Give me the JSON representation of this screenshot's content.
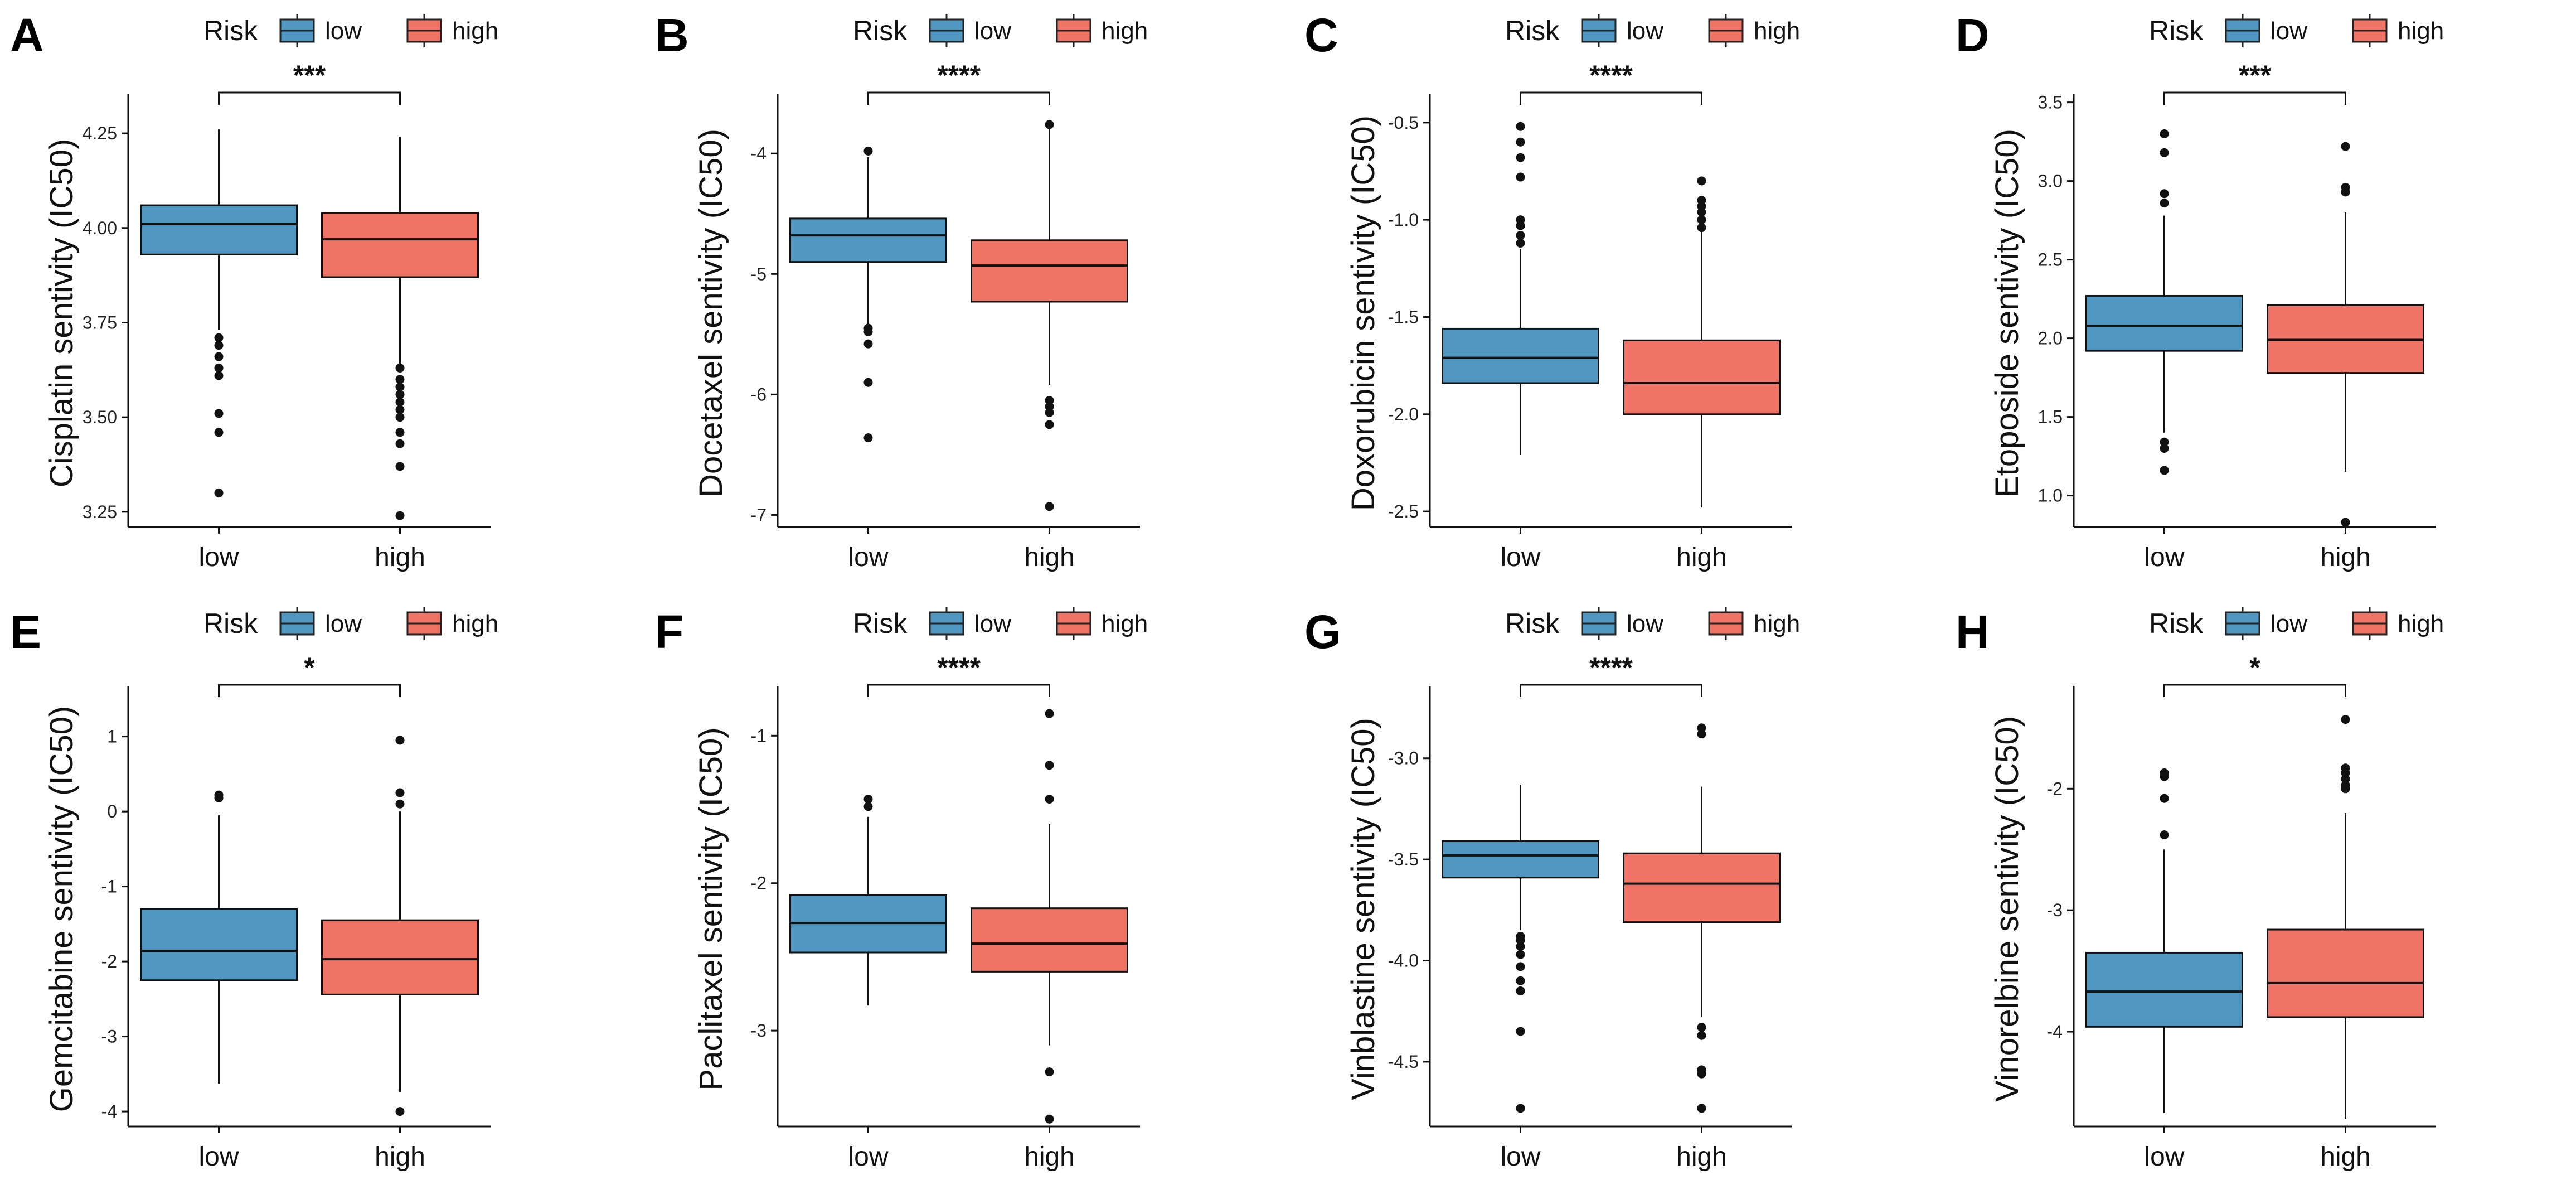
{
  "legend": {
    "title": "Risk",
    "items": [
      {
        "label": "low",
        "color": "#4f96c0"
      },
      {
        "label": "high",
        "color": "#ef7466"
      }
    ]
  },
  "chart_data": [
    {
      "panel": "A",
      "type": "box",
      "ylabel": "Cisplatin sentivity (IC50)",
      "categories": [
        "low",
        "high"
      ],
      "ylim": [
        3.21,
        4.34
      ],
      "yticks": [
        3.25,
        3.5,
        3.75,
        4.0,
        4.25
      ],
      "ytick_labels": [
        "3.25",
        "3.50",
        "3.75",
        "4.00",
        "4.25"
      ],
      "significance": "***",
      "boxes": [
        {
          "group": "low",
          "whisker_low": 3.73,
          "q1": 3.93,
          "median": 4.01,
          "q3": 4.06,
          "whisker_high": 4.26,
          "outliers": [
            3.3,
            3.46,
            3.51,
            3.61,
            3.63,
            3.66,
            3.69,
            3.71
          ]
        },
        {
          "group": "high",
          "whisker_low": 3.64,
          "q1": 3.87,
          "median": 3.97,
          "q3": 4.04,
          "whisker_high": 4.24,
          "outliers": [
            3.24,
            3.37,
            3.43,
            3.46,
            3.5,
            3.52,
            3.54,
            3.56,
            3.58,
            3.6,
            3.63
          ]
        }
      ]
    },
    {
      "panel": "B",
      "type": "box",
      "ylabel": "Docetaxel sentivity (IC50)",
      "categories": [
        "low",
        "high"
      ],
      "ylim": [
        -7.1,
        -3.55
      ],
      "yticks": [
        -7,
        -6,
        -5,
        -4
      ],
      "ytick_labels": [
        "-7",
        "-6",
        "-5",
        "-4"
      ],
      "significance": "****",
      "boxes": [
        {
          "group": "low",
          "whisker_low": -5.42,
          "q1": -4.9,
          "median": -4.68,
          "q3": -4.54,
          "whisker_high": -4.03,
          "outliers": [
            -3.98,
            -5.45,
            -5.48,
            -5.58,
            -5.9,
            -6.36
          ]
        },
        {
          "group": "high",
          "whisker_low": -5.92,
          "q1": -5.23,
          "median": -4.93,
          "q3": -4.72,
          "whisker_high": -3.8,
          "outliers": [
            -3.76,
            -6.05,
            -6.1,
            -6.15,
            -6.25,
            -6.93
          ]
        }
      ]
    },
    {
      "panel": "C",
      "type": "box",
      "ylabel": "Doxorubicin sentivity (IC50)",
      "categories": [
        "low",
        "high"
      ],
      "ylim": [
        -2.58,
        -0.38
      ],
      "yticks": [
        -2.5,
        -2.0,
        -1.5,
        -1.0,
        -0.5
      ],
      "ytick_labels": [
        "-2.5",
        "-2.0",
        "-1.5",
        "-1.0",
        "-0.5"
      ],
      "significance": "****",
      "boxes": [
        {
          "group": "low",
          "whisker_low": -2.21,
          "q1": -1.84,
          "median": -1.71,
          "q3": -1.56,
          "whisker_high": -1.15,
          "outliers": [
            -0.52,
            -0.6,
            -0.68,
            -0.78,
            -1.0,
            -1.03,
            -1.08,
            -1.12
          ]
        },
        {
          "group": "high",
          "whisker_low": -2.48,
          "q1": -2.0,
          "median": -1.84,
          "q3": -1.62,
          "whisker_high": -1.06,
          "outliers": [
            -0.8,
            -0.9,
            -0.93,
            -0.96,
            -1.0,
            -1.04
          ]
        }
      ]
    },
    {
      "panel": "D",
      "type": "box",
      "ylabel": "Etoposide sentivity (IC50)",
      "categories": [
        "low",
        "high"
      ],
      "ylim": [
        0.8,
        3.52
      ],
      "yticks": [
        1.0,
        1.5,
        2.0,
        2.5,
        3.0,
        3.5
      ],
      "ytick_labels": [
        "1.0",
        "1.5",
        "2.0",
        "2.5",
        "3.0",
        "3.5"
      ],
      "significance": "***",
      "boxes": [
        {
          "group": "low",
          "whisker_low": 1.4,
          "q1": 1.92,
          "median": 2.08,
          "q3": 2.27,
          "whisker_high": 2.78,
          "outliers": [
            1.16,
            1.3,
            1.34,
            2.86,
            2.92,
            3.18,
            3.3
          ]
        },
        {
          "group": "high",
          "whisker_low": 1.15,
          "q1": 1.78,
          "median": 1.99,
          "q3": 2.21,
          "whisker_high": 2.8,
          "outliers": [
            0.83,
            2.93,
            2.96,
            3.22
          ]
        }
      ]
    },
    {
      "panel": "E",
      "type": "box",
      "ylabel": "Gemcitabine sentivity (IC50)",
      "categories": [
        "low",
        "high"
      ],
      "ylim": [
        -4.2,
        1.6
      ],
      "yticks": [
        -4,
        -3,
        -2,
        -1,
        0,
        1
      ],
      "ytick_labels": [
        "-4",
        "-3",
        "-2",
        "-1",
        "0",
        "1"
      ],
      "significance": "*",
      "boxes": [
        {
          "group": "low",
          "whisker_low": -3.63,
          "q1": -2.25,
          "median": -1.86,
          "q3": -1.3,
          "whisker_high": -0.05,
          "outliers": [
            0.18,
            0.22
          ]
        },
        {
          "group": "high",
          "whisker_low": -3.74,
          "q1": -2.44,
          "median": -1.97,
          "q3": -1.45,
          "whisker_high": 0.0,
          "outliers": [
            -4.0,
            0.1,
            0.25,
            0.95
          ]
        }
      ]
    },
    {
      "panel": "F",
      "type": "box",
      "ylabel": "Paclitaxel sentivity (IC50)",
      "categories": [
        "low",
        "high"
      ],
      "ylim": [
        -3.65,
        -0.7
      ],
      "yticks": [
        -3,
        -2,
        -1
      ],
      "ytick_labels": [
        "-3",
        "-2",
        "-1"
      ],
      "significance": "****",
      "boxes": [
        {
          "group": "low",
          "whisker_low": -2.83,
          "q1": -2.47,
          "median": -2.27,
          "q3": -2.08,
          "whisker_high": -1.55,
          "outliers": [
            -1.43,
            -1.48
          ]
        },
        {
          "group": "high",
          "whisker_low": -3.1,
          "q1": -2.6,
          "median": -2.41,
          "q3": -2.17,
          "whisker_high": -1.6,
          "outliers": [
            -0.85,
            -1.2,
            -1.43,
            -3.28,
            -3.6
          ]
        }
      ]
    },
    {
      "panel": "G",
      "type": "box",
      "ylabel": "Vinblastine sentivity (IC50)",
      "categories": [
        "low",
        "high"
      ],
      "ylim": [
        -4.82,
        -2.67
      ],
      "yticks": [
        -4.5,
        -4.0,
        -3.5,
        -3.0
      ],
      "ytick_labels": [
        "-4.5",
        "-4.0",
        "-3.5",
        "-3.0"
      ],
      "significance": "****",
      "boxes": [
        {
          "group": "low",
          "whisker_low": -3.85,
          "q1": -3.59,
          "median": -3.48,
          "q3": -3.41,
          "whisker_high": -3.13,
          "outliers": [
            -3.88,
            -3.9,
            -3.93,
            -3.97,
            -4.03,
            -4.1,
            -4.15,
            -4.35,
            -4.73
          ]
        },
        {
          "group": "high",
          "whisker_low": -4.28,
          "q1": -3.81,
          "median": -3.62,
          "q3": -3.47,
          "whisker_high": -3.14,
          "outliers": [
            -2.85,
            -2.88,
            -4.33,
            -4.37,
            -4.54,
            -4.56,
            -4.73
          ]
        }
      ]
    },
    {
      "panel": "H",
      "type": "box",
      "ylabel": "Vinorelbine sentivity (IC50)",
      "categories": [
        "low",
        "high"
      ],
      "ylim": [
        -4.78,
        -1.2
      ],
      "yticks": [
        -4,
        -3,
        -2
      ],
      "ytick_labels": [
        "-4",
        "-3",
        "-2"
      ],
      "significance": "*",
      "boxes": [
        {
          "group": "low",
          "whisker_low": -4.67,
          "q1": -3.96,
          "median": -3.67,
          "q3": -3.35,
          "whisker_high": -2.5,
          "outliers": [
            -1.87,
            -1.9,
            -2.08,
            -2.38
          ]
        },
        {
          "group": "high",
          "whisker_low": -4.72,
          "q1": -3.88,
          "median": -3.6,
          "q3": -3.16,
          "whisker_high": -2.2,
          "outliers": [
            -1.43,
            -1.83,
            -1.87,
            -1.92,
            -1.97,
            -2.0
          ]
        }
      ]
    }
  ]
}
